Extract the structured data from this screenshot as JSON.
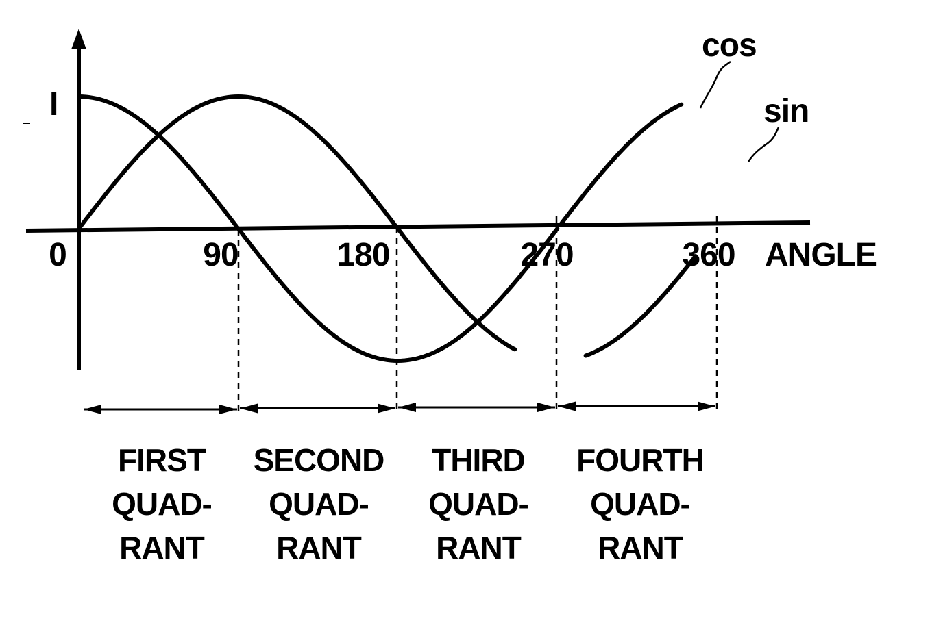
{
  "chart_data": {
    "type": "line",
    "xlabel": "ANGLE",
    "ylabel": "",
    "y_tick_label": "I",
    "x_tick_labels": [
      "0",
      "90",
      "180",
      "270",
      "360"
    ],
    "xlim": [
      0,
      360
    ],
    "ylim": [
      -1,
      1
    ],
    "grid": false,
    "series": [
      {
        "name": "cos",
        "x": [
          0,
          30,
          60,
          90,
          120,
          150,
          180,
          210,
          240,
          270,
          300,
          330,
          360
        ],
        "values": [
          1,
          0.87,
          0.5,
          0,
          -0.5,
          -0.87,
          -1,
          -0.87,
          -0.5,
          0,
          0.5,
          0.87,
          1
        ]
      },
      {
        "name": "sin",
        "x": [
          0,
          30,
          60,
          90,
          120,
          150,
          180,
          210,
          240,
          270,
          300,
          330,
          360
        ],
        "values": [
          0,
          0.5,
          0.87,
          1,
          0.87,
          0.5,
          0,
          -0.5,
          -0.87,
          -1,
          -0.87,
          -0.5,
          0
        ]
      }
    ],
    "regions": [
      {
        "label_line1": "FIRST",
        "label_line2": "QUAD-",
        "label_line3": "RANT"
      },
      {
        "label_line1": "SECOND",
        "label_line2": "QUAD-",
        "label_line3": "RANT"
      },
      {
        "label_line1": "THIRD",
        "label_line2": "QUAD-",
        "label_line3": "RANT"
      },
      {
        "label_line1": "FOURTH",
        "label_line2": "QUAD-",
        "label_line3": "RANT"
      }
    ]
  }
}
